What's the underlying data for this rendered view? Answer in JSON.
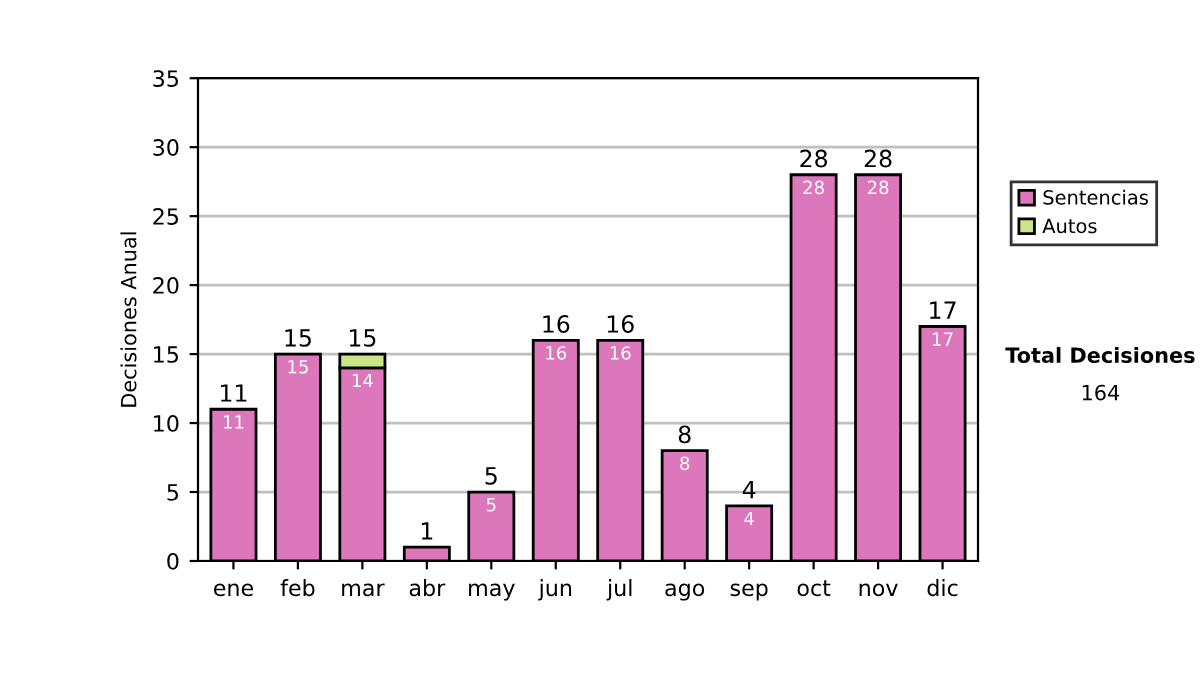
{
  "chart_data": {
    "type": "bar",
    "stacked": true,
    "ylabel": "Decisiones Anual",
    "categories": [
      "ene",
      "feb",
      "mar",
      "abr",
      "may",
      "jun",
      "jul",
      "ago",
      "sep",
      "oct",
      "nov",
      "dic"
    ],
    "series": [
      {
        "name": "Sentencias",
        "color": "#dd77bb",
        "values": [
          11,
          15,
          14,
          1,
          5,
          16,
          16,
          8,
          4,
          28,
          28,
          17
        ],
        "value_labels": [
          "11",
          "15",
          "14",
          null,
          "5",
          "16",
          "16",
          "8",
          "4",
          "28",
          "28",
          "17"
        ]
      },
      {
        "name": "Autos",
        "color": "#cce488",
        "values": [
          null,
          null,
          1,
          null,
          null,
          null,
          null,
          null,
          null,
          null,
          null,
          null
        ]
      }
    ],
    "totals": [
      "11",
      "15",
      "15",
      "1",
      "5",
      "16",
      "16",
      "8",
      "4",
      "28",
      "28",
      "17"
    ],
    "ylim": [
      0,
      35
    ],
    "yticks": [
      0,
      5,
      10,
      15,
      20,
      25,
      30,
      35
    ],
    "grid": "y",
    "legend": "right",
    "annotations": [
      "Total Decisiones",
      "164"
    ]
  }
}
